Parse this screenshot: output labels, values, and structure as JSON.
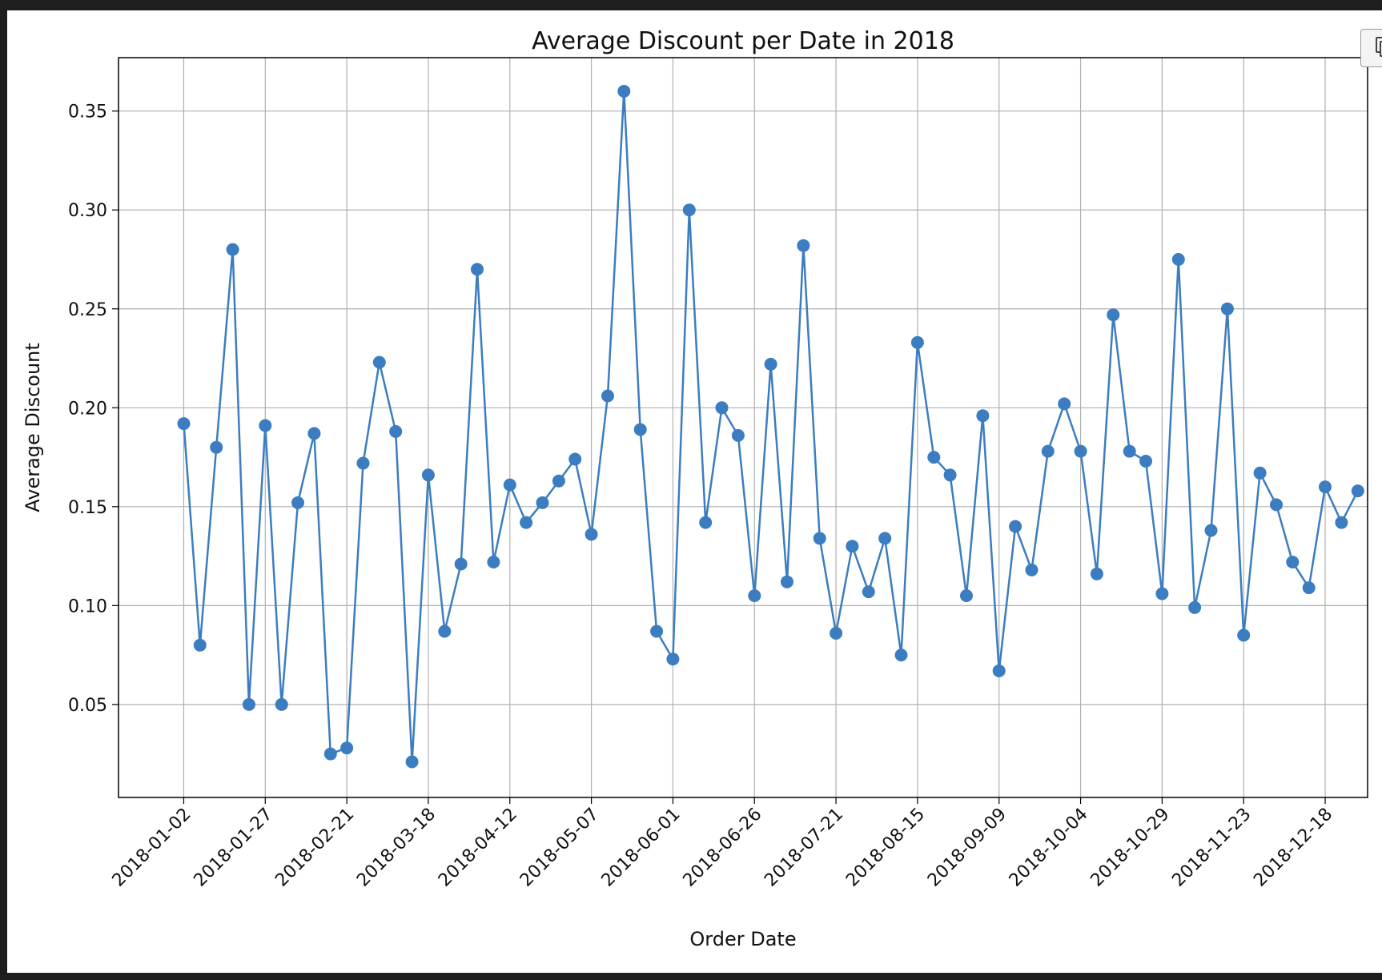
{
  "chart_data": {
    "type": "line",
    "title": "Average Discount per Date in 2018",
    "xlabel": "Order Date",
    "ylabel": "Average Discount",
    "x_tick_labels": [
      "2018-01-02",
      "2018-01-27",
      "2018-02-21",
      "2018-03-18",
      "2018-04-12",
      "2018-05-07",
      "2018-06-01",
      "2018-06-26",
      "2018-07-21",
      "2018-08-15",
      "2018-09-09",
      "2018-10-04",
      "2018-10-29",
      "2018-11-23",
      "2018-12-18"
    ],
    "y_ticks": [
      0.05,
      0.1,
      0.15,
      0.2,
      0.25,
      0.3,
      0.35
    ],
    "y_tick_labels": [
      "0.05",
      "0.10",
      "0.15",
      "0.20",
      "0.25",
      "0.30",
      "0.35"
    ],
    "xlim": [
      "2017-12-13",
      "2018-12-31"
    ],
    "ylim": [
      0.003,
      0.377
    ],
    "grid": true,
    "color": "#3b7dc0",
    "series": [
      {
        "x": [
          "2018-01-02",
          "2018-01-07",
          "2018-01-12",
          "2018-01-17",
          "2018-01-22",
          "2018-01-27",
          "2018-02-01",
          "2018-02-06",
          "2018-02-11",
          "2018-02-16",
          "2018-02-21",
          "2018-02-26",
          "2018-03-03",
          "2018-03-08",
          "2018-03-13",
          "2018-03-18",
          "2018-03-23",
          "2018-03-28",
          "2018-04-02",
          "2018-04-07",
          "2018-04-12",
          "2018-04-17",
          "2018-04-22",
          "2018-04-27",
          "2018-05-02",
          "2018-05-07",
          "2018-05-12",
          "2018-05-17",
          "2018-05-22",
          "2018-05-27",
          "2018-06-01",
          "2018-06-06",
          "2018-06-11",
          "2018-06-16",
          "2018-06-21",
          "2018-06-26",
          "2018-07-01",
          "2018-07-06",
          "2018-07-11",
          "2018-07-16",
          "2018-07-21",
          "2018-07-26",
          "2018-07-31",
          "2018-08-05",
          "2018-08-10",
          "2018-08-15",
          "2018-08-20",
          "2018-08-25",
          "2018-08-30",
          "2018-09-04",
          "2018-09-09",
          "2018-09-14",
          "2018-09-19",
          "2018-09-24",
          "2018-09-29",
          "2018-10-04",
          "2018-10-09",
          "2018-10-14",
          "2018-10-19",
          "2018-10-24",
          "2018-10-29",
          "2018-11-03",
          "2018-11-08",
          "2018-11-13",
          "2018-11-18",
          "2018-11-23",
          "2018-11-28",
          "2018-12-03",
          "2018-12-08",
          "2018-12-13",
          "2018-12-18",
          "2018-12-23",
          "2018-12-28"
        ],
        "y": [
          0.192,
          0.08,
          0.18,
          0.28,
          0.05,
          0.191,
          0.05,
          0.152,
          0.187,
          0.025,
          0.028,
          0.172,
          0.223,
          0.188,
          0.021,
          0.166,
          0.087,
          0.121,
          0.27,
          0.122,
          0.161,
          0.142,
          0.152,
          0.163,
          0.174,
          0.136,
          0.206,
          0.36,
          0.189,
          0.087,
          0.073,
          0.3,
          0.142,
          0.2,
          0.186,
          0.105,
          0.222,
          0.112,
          0.282,
          0.134,
          0.086,
          0.13,
          0.107,
          0.134,
          0.075,
          0.233,
          0.175,
          0.166,
          0.105,
          0.196,
          0.067,
          0.14,
          0.118,
          0.178,
          0.202,
          0.178,
          0.116,
          0.247,
          0.178,
          0.173,
          0.106,
          0.275,
          0.099,
          0.138,
          0.25,
          0.085,
          0.167,
          0.151,
          0.122,
          0.109,
          0.16,
          0.142,
          0.158
        ]
      }
    ]
  }
}
